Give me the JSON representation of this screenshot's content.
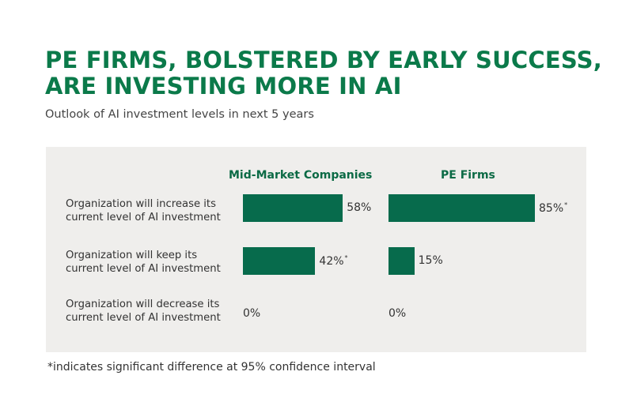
{
  "title_lines": [
    "PE FIRMS, BOLSTERED BY EARLY SUCCESS,",
    "ARE INVESTING MORE IN AI"
  ],
  "subtitle": "Outlook of AI investment levels in next 5 years",
  "footnote": "*indicates significant difference at 95% confidence interval",
  "colors": {
    "title": "#0b7a4a",
    "bar": "#076b4c",
    "panel": "#efeeec"
  },
  "chart_data": {
    "type": "bar",
    "orientation": "horizontal",
    "value_unit": "%",
    "categories": [
      [
        "Organization will increase its",
        "current level of AI investment"
      ],
      [
        "Organization will keep its",
        "current level of AI investment"
      ],
      [
        "Organization will decrease its",
        "current level of AI investment"
      ]
    ],
    "series": [
      {
        "name": "Mid-Market Companies",
        "values": [
          58,
          42,
          0
        ],
        "labels": [
          "58%",
          "42%",
          "0%"
        ],
        "significant": [
          false,
          true,
          false
        ]
      },
      {
        "name": "PE Firms",
        "values": [
          85,
          15,
          0
        ],
        "labels": [
          "85%",
          "15%",
          "0%"
        ],
        "significant": [
          true,
          false,
          false
        ]
      }
    ],
    "significance_marker": "*"
  }
}
